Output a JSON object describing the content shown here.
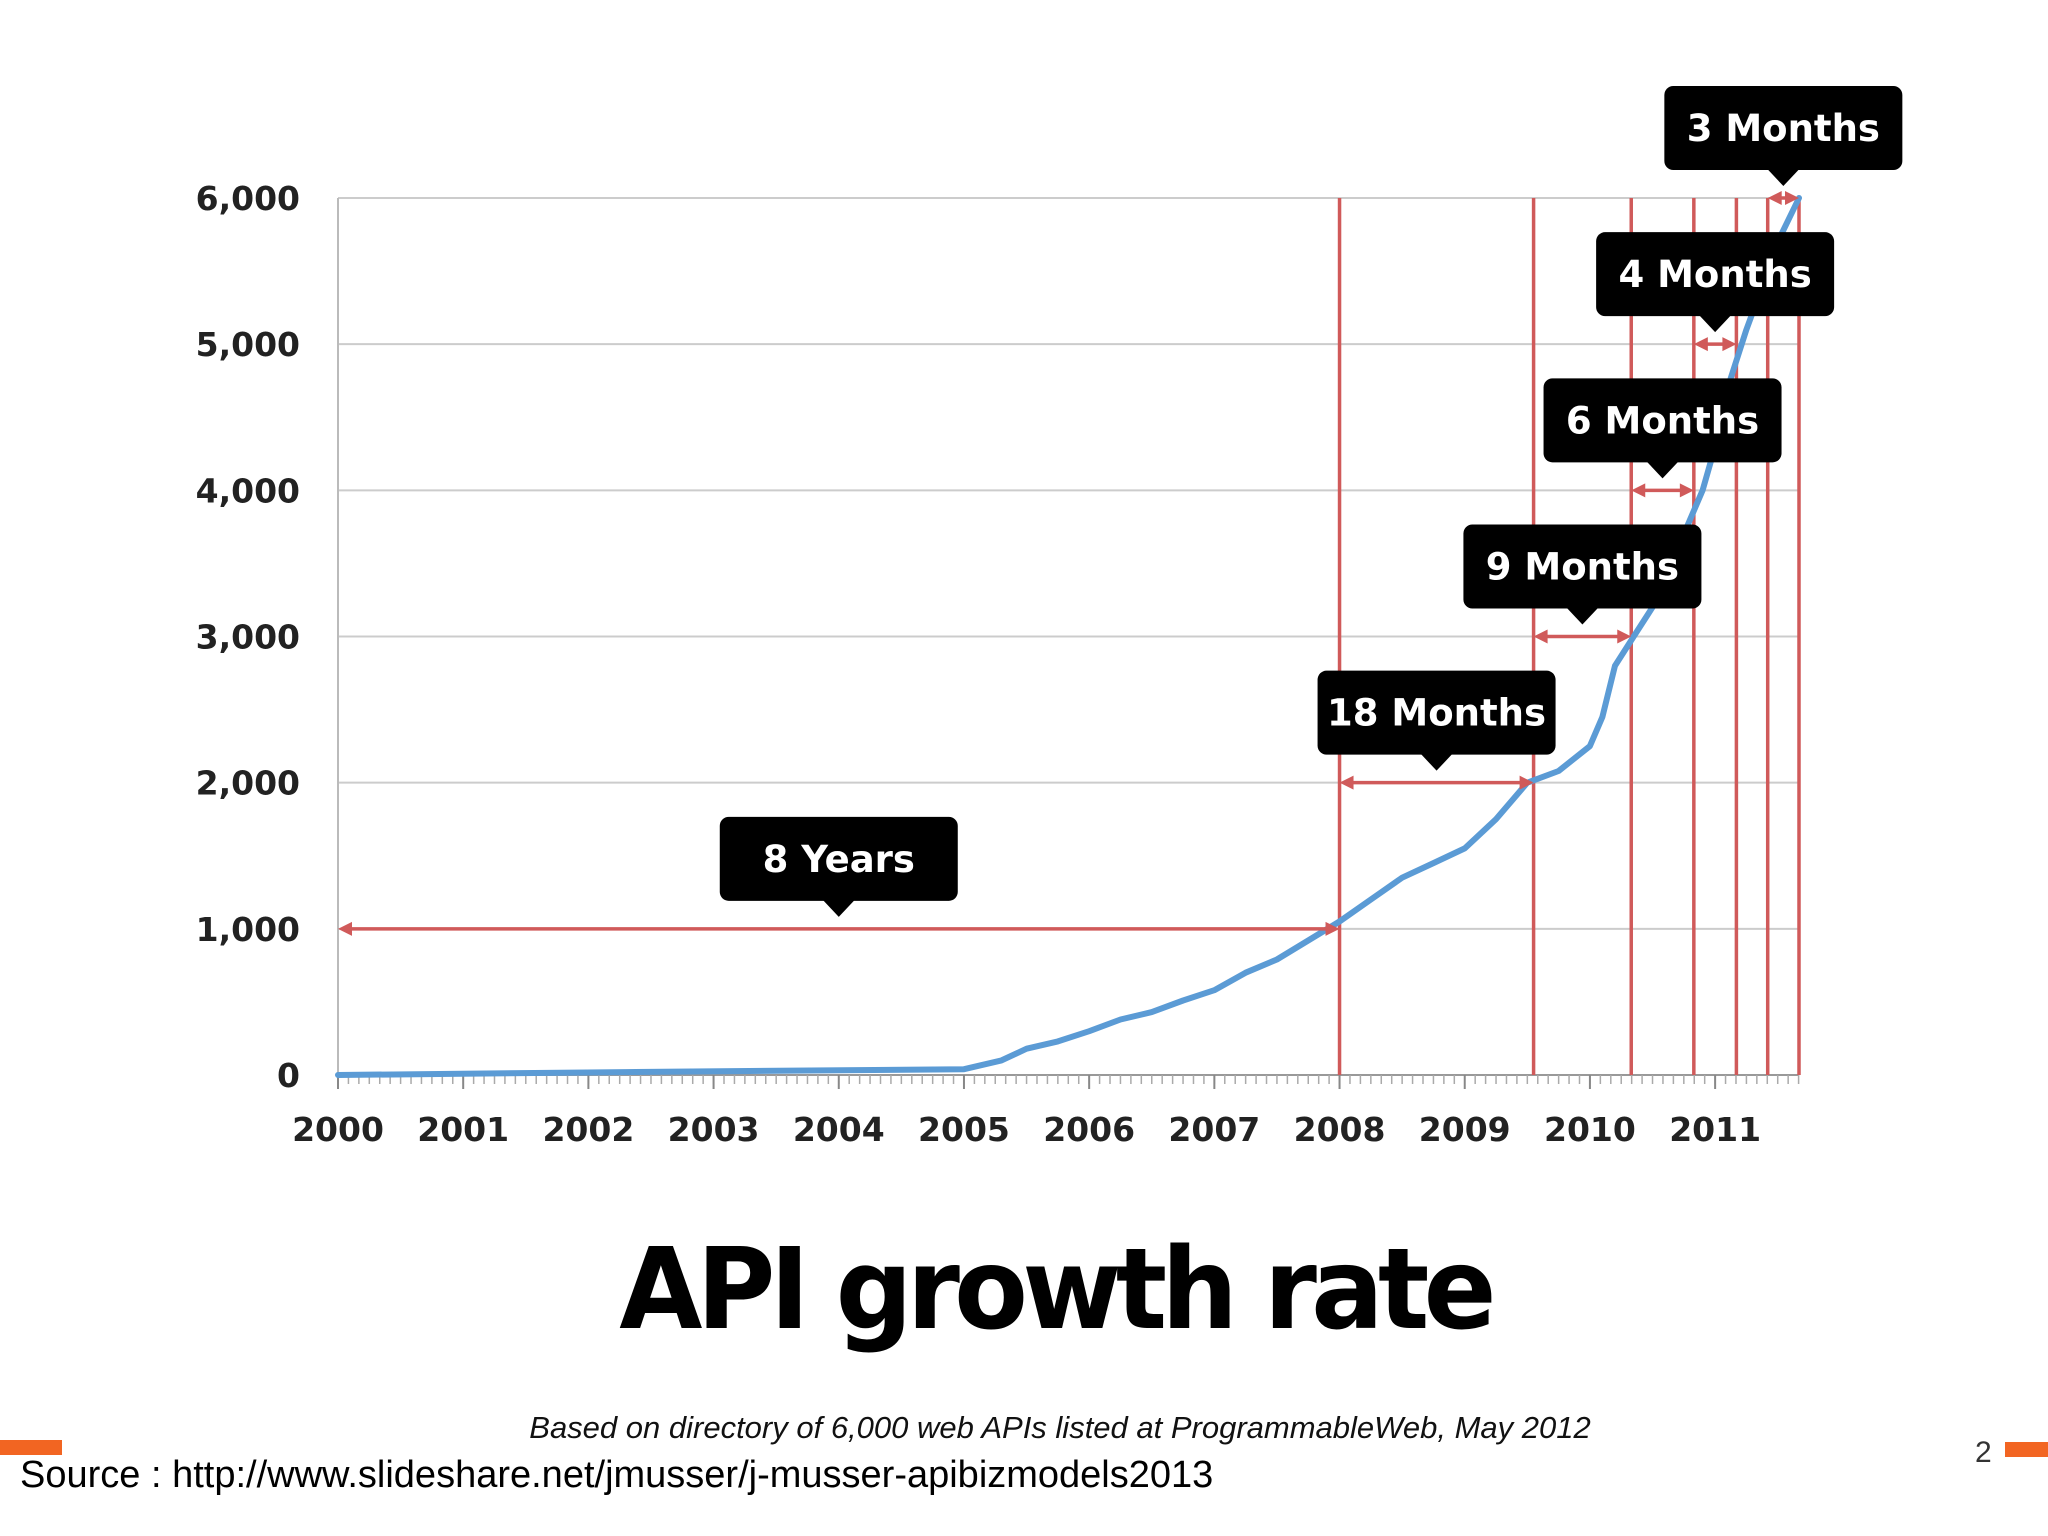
{
  "chart_data": {
    "type": "line",
    "title": "API growth rate",
    "subtitle": "Based on directory of 6,000 web APIs listed at ProgrammableWeb, May 2012",
    "xlabel": "",
    "ylabel": "",
    "xlim": [
      2000,
      2011.67
    ],
    "ylim": [
      0,
      6000
    ],
    "x_ticks": [
      "2000",
      "2001",
      "2002",
      "2003",
      "2004",
      "2005",
      "2006",
      "2007",
      "2008",
      "2009",
      "2010",
      "2011"
    ],
    "y_ticks": [
      "0",
      "1,000",
      "2,000",
      "3,000",
      "4,000",
      "5,000",
      "6,000"
    ],
    "grid": "horizontal",
    "series": [
      {
        "color": "#5b9bd5",
        "x": [
          2000,
          2002.3,
          2005.0,
          2005.3,
          2005.5,
          2005.75,
          2006.0,
          2006.25,
          2006.5,
          2006.75,
          2007.0,
          2007.25,
          2007.5,
          2007.75,
          2008.0,
          2008.25,
          2008.5,
          2008.75,
          2009.0,
          2009.25,
          2009.5,
          2009.75,
          2010.0,
          2010.1,
          2010.2,
          2010.35,
          2010.5,
          2010.6,
          2010.75,
          2010.9,
          2011.0,
          2011.1,
          2011.25,
          2011.4,
          2011.5,
          2011.67
        ],
        "y": [
          0,
          20,
          40,
          100,
          180,
          230,
          300,
          380,
          430,
          510,
          580,
          700,
          790,
          920,
          1050,
          1200,
          1350,
          1450,
          1550,
          1750,
          2000,
          2080,
          2250,
          2450,
          2800,
          3000,
          3200,
          3400,
          3700,
          4000,
          4300,
          4700,
          5100,
          5450,
          5700,
          6000
        ]
      }
    ],
    "milestones": [
      2008.0,
      2009.55,
      2010.33,
      2010.83,
      2011.17,
      2011.42,
      2011.67
    ],
    "spans": [
      {
        "label": "8 Years",
        "from": 2000.0,
        "to": 2008.0,
        "level": 1000
      },
      {
        "label": "18 Months",
        "from": 2008.0,
        "to": 2009.55,
        "level": 2000
      },
      {
        "label": "9 Months",
        "from": 2009.55,
        "to": 2010.33,
        "level": 3000
      },
      {
        "label": "6 Months",
        "from": 2010.33,
        "to": 2010.83,
        "level": 4000
      },
      {
        "label": "4 Months",
        "from": 2010.83,
        "to": 2011.17,
        "level": 5000
      },
      {
        "label": "3 Months",
        "from": 2011.42,
        "to": 2011.67,
        "level": 6000
      }
    ]
  },
  "source": "Source : http://www.slideshare.net/jmusser/j-musser-apibizmodels2013",
  "page_number": "2",
  "colors": {
    "line": "#5b9bd5",
    "markers": "#d05a5a",
    "grid": "#cccccc",
    "callout": "#000000",
    "accent_bar": "#f26522"
  }
}
